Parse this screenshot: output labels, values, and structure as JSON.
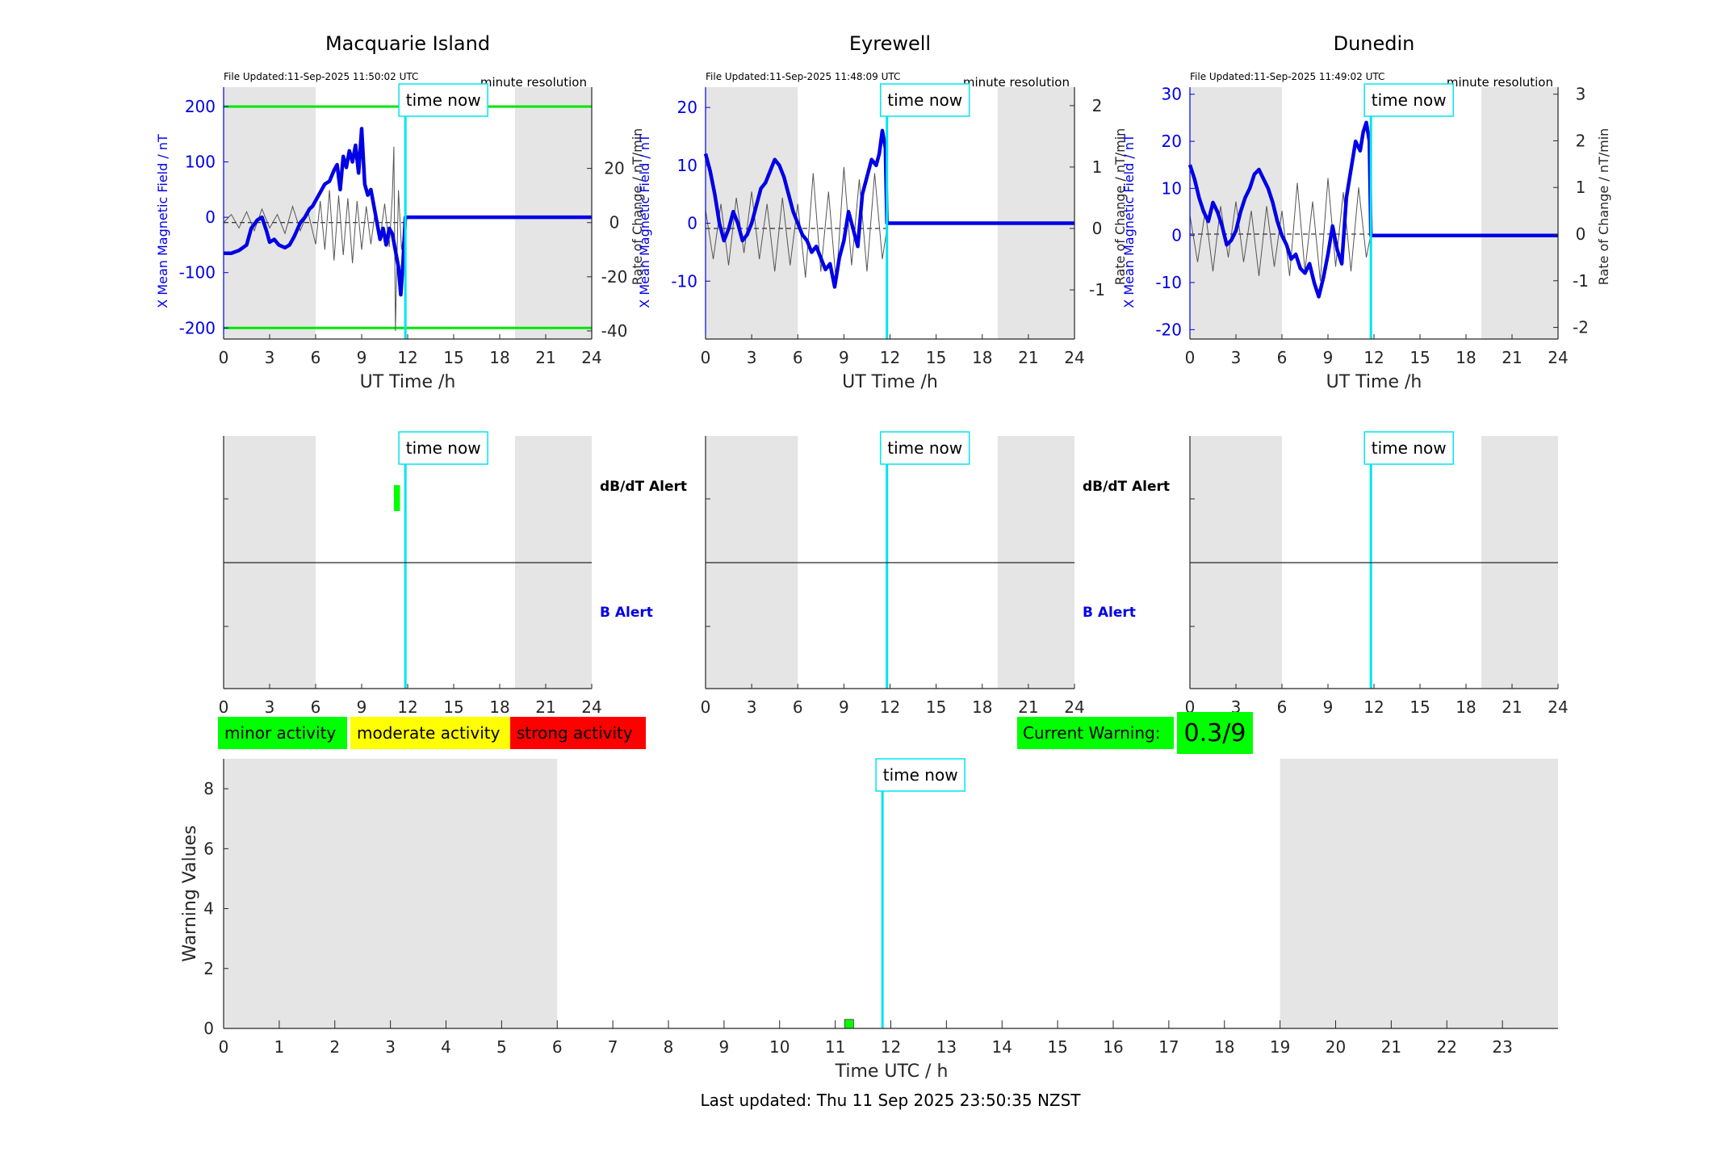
{
  "footer": {
    "last_updated": "Last updated: Thu 11 Sep 2025 23:50:35 NZST"
  },
  "colors": {
    "series_blue": "#0000e6",
    "rate_gray": "#555555",
    "time_now": "#00e5ee",
    "shade": "#e5e5e5",
    "threshold_green": "#00e600",
    "minor": "#00ff00",
    "moderate": "#ffff00",
    "strong": "#ff0000"
  },
  "legend": {
    "minor": "minor activity",
    "moderate": "moderate activity",
    "strong": "strong activity"
  },
  "current_warning": {
    "label": "Current Warning:",
    "value": "0.3/9"
  },
  "stations": [
    {
      "name": "Macquarie Island",
      "file_updated": "File Updated:11-Sep-2025 11:50:02 UTC",
      "resolution": "minute resolution",
      "time_now_label": "time now",
      "dbdt_alert_label": "dB/dT Alert",
      "b_alert_label": "B Alert",
      "alert_panel_labels": true
    },
    {
      "name": "Eyrewell",
      "file_updated": "File Updated:11-Sep-2025 11:48:09 UTC",
      "resolution": "minute resolution",
      "time_now_label": "time now",
      "dbdt_alert_label": "dB/dT Alert",
      "b_alert_label": "B Alert",
      "alert_panel_labels": true
    },
    {
      "name": "Dunedin",
      "file_updated": "File Updated:11-Sep-2025 11:49:02 UTC",
      "resolution": "minute resolution",
      "time_now_label": "time now",
      "dbdt_alert_label": "",
      "b_alert_label": "",
      "alert_panel_labels": false
    }
  ],
  "chart_data": [
    {
      "type": "line",
      "title": "Macquarie Island",
      "xlabel": "UT Time /h",
      "ylabel": "X Mean Magnetic Field / nT",
      "ylabel_right": "Rate of Change / nT/min",
      "xlim": [
        0,
        24
      ],
      "xticks": [
        0,
        3,
        6,
        9,
        12,
        15,
        18,
        21,
        24
      ],
      "ylim": [
        -220,
        235
      ],
      "yticks": [
        -200,
        -100,
        0,
        100,
        200
      ],
      "ylim_right": [
        -43,
        50
      ],
      "yticks_right": [
        -40,
        -20,
        0,
        20
      ],
      "shaded_x": [
        [
          0,
          6
        ],
        [
          19,
          24
        ]
      ],
      "time_now": 11.85,
      "thresholds": [
        200,
        -200
      ],
      "series": [
        {
          "role": "x_field",
          "x": [
            0,
            0.5,
            1,
            1.5,
            1.8,
            2.2,
            2.5,
            2.8,
            3,
            3.3,
            3.6,
            4,
            4.3,
            4.6,
            5,
            5.3,
            5.6,
            5.8,
            6,
            6.3,
            6.6,
            6.9,
            7.2,
            7.4,
            7.6,
            7.8,
            8,
            8.2,
            8.4,
            8.6,
            8.8,
            9,
            9.2,
            9.4,
            9.6,
            9.8,
            10,
            10.2,
            10.4,
            10.6,
            10.8,
            11,
            11.2,
            11.4,
            11.55,
            11.7,
            11.85,
            24
          ],
          "y": [
            -65,
            -65,
            -60,
            -50,
            -20,
            -5,
            0,
            -25,
            -45,
            -40,
            -50,
            -55,
            -50,
            -35,
            -10,
            0,
            15,
            20,
            30,
            45,
            60,
            65,
            85,
            95,
            50,
            110,
            90,
            120,
            100,
            130,
            80,
            160,
            60,
            40,
            50,
            20,
            -10,
            -40,
            -20,
            -50,
            -20,
            -30,
            -60,
            -90,
            -140,
            -80,
            0,
            0
          ]
        },
        {
          "role": "rate",
          "x": [
            0,
            0.5,
            1,
            1.5,
            2,
            2.5,
            3,
            3.5,
            4,
            4.5,
            5,
            5.5,
            6,
            6.3,
            6.6,
            6.9,
            7.2,
            7.5,
            7.8,
            8.1,
            8.4,
            8.7,
            9,
            9.3,
            9.6,
            9.9,
            10.2,
            10.5,
            10.8,
            11,
            11.1,
            11.2,
            11.4,
            11.6,
            11.85
          ],
          "y": [
            0,
            3,
            -2,
            4,
            -3,
            5,
            -2,
            3,
            -4,
            6,
            -3,
            4,
            -8,
            8,
            -10,
            12,
            -14,
            10,
            -12,
            9,
            -15,
            8,
            -10,
            6,
            -8,
            5,
            -6,
            7,
            -9,
            10,
            28,
            -40,
            12,
            -10,
            0
          ]
        }
      ]
    },
    {
      "type": "line",
      "title": "Eyrewell",
      "xlabel": "UT Time /h",
      "ylabel": "X Mean Magnetic Field / nT",
      "ylabel_right": "Rate of Change / nT/min",
      "xlim": [
        0,
        24
      ],
      "xticks": [
        0,
        3,
        6,
        9,
        12,
        15,
        18,
        21,
        24
      ],
      "ylim": [
        -20,
        23.5
      ],
      "yticks": [
        -10,
        0,
        10,
        20
      ],
      "ylim_right": [
        -1.8,
        2.3
      ],
      "yticks_right": [
        -1,
        0,
        1,
        2
      ],
      "shaded_x": [
        [
          0,
          6
        ],
        [
          19,
          24
        ]
      ],
      "time_now": 11.8,
      "thresholds": [],
      "series": [
        {
          "role": "x_field",
          "x": [
            0,
            0.3,
            0.6,
            0.9,
            1.2,
            1.5,
            1.8,
            2.1,
            2.4,
            2.7,
            3,
            3.3,
            3.6,
            3.9,
            4.2,
            4.5,
            4.8,
            5.1,
            5.4,
            5.7,
            6,
            6.3,
            6.6,
            6.9,
            7.2,
            7.5,
            7.8,
            8.1,
            8.4,
            8.7,
            9,
            9.3,
            9.6,
            9.9,
            10.2,
            10.5,
            10.8,
            11.1,
            11.3,
            11.5,
            11.7,
            11.8,
            24
          ],
          "y": [
            12,
            9,
            5,
            0,
            -3,
            -1,
            2,
            0,
            -3,
            -2,
            0,
            3,
            6,
            7,
            9,
            11,
            10,
            8,
            5,
            2,
            0,
            -2,
            -3,
            -5,
            -4,
            -6,
            -8,
            -7,
            -11,
            -6,
            -3,
            2,
            -1,
            -4,
            5,
            8,
            11,
            10,
            12,
            16,
            13,
            0,
            0
          ]
        },
        {
          "role": "rate",
          "x": [
            0,
            0.5,
            1,
            1.5,
            2,
            2.5,
            3,
            3.5,
            4,
            4.5,
            5,
            5.5,
            6,
            6.5,
            7,
            7.5,
            8,
            8.5,
            9,
            9.5,
            10,
            10.5,
            11,
            11.5,
            11.8
          ],
          "y": [
            0.3,
            -0.5,
            0.4,
            -0.6,
            0.5,
            -0.4,
            0.6,
            -0.5,
            0.4,
            -0.7,
            0.5,
            -0.6,
            0.4,
            -0.8,
            0.9,
            -0.7,
            0.6,
            -0.9,
            1.0,
            -0.6,
            0.8,
            -0.7,
            0.9,
            -0.5,
            0
          ]
        }
      ]
    },
    {
      "type": "line",
      "title": "Dunedin",
      "xlabel": "UT Time /h",
      "ylabel": "X Mean Magnetic Field / nT",
      "ylabel_right": "Rate of Change / nT/min",
      "xlim": [
        0,
        24
      ],
      "xticks": [
        0,
        3,
        6,
        9,
        12,
        15,
        18,
        21,
        24
      ],
      "ylim": [
        -22,
        31.5
      ],
      "yticks": [
        -20,
        -10,
        0,
        10,
        20,
        30
      ],
      "ylim_right": [
        -2.25,
        3.15
      ],
      "yticks_right": [
        -2,
        -1,
        0,
        1,
        2,
        3
      ],
      "shaded_x": [
        [
          0,
          6
        ],
        [
          19,
          24
        ]
      ],
      "time_now": 11.8,
      "thresholds": [],
      "series": [
        {
          "role": "x_field",
          "x": [
            0,
            0.3,
            0.6,
            0.9,
            1.2,
            1.5,
            1.8,
            2.1,
            2.4,
            2.7,
            3,
            3.3,
            3.6,
            3.9,
            4.2,
            4.5,
            4.8,
            5.1,
            5.4,
            5.7,
            6,
            6.3,
            6.6,
            6.9,
            7.2,
            7.5,
            7.8,
            8.1,
            8.4,
            8.7,
            9,
            9.3,
            9.6,
            9.9,
            10.2,
            10.5,
            10.8,
            11.1,
            11.3,
            11.5,
            11.7,
            11.8,
            24
          ],
          "y": [
            15,
            12,
            8,
            5,
            3,
            7,
            5,
            2,
            -2,
            -1,
            1,
            5,
            8,
            10,
            13,
            14,
            12,
            10,
            7,
            3,
            0,
            -2,
            -5,
            -4,
            -7,
            -8,
            -6,
            -10,
            -13,
            -9,
            -4,
            2,
            -3,
            -6,
            8,
            14,
            20,
            18,
            22,
            24,
            20,
            0,
            0
          ]
        },
        {
          "role": "rate",
          "x": [
            0,
            0.5,
            1,
            1.5,
            2,
            2.5,
            3,
            3.5,
            4,
            4.5,
            5,
            5.5,
            6,
            6.5,
            7,
            7.5,
            8,
            8.5,
            9,
            9.5,
            10,
            10.5,
            11,
            11.5,
            11.8
          ],
          "y": [
            0.4,
            -0.6,
            0.5,
            -0.8,
            0.6,
            -0.5,
            0.7,
            -0.6,
            0.5,
            -0.9,
            0.6,
            -0.7,
            0.5,
            -0.9,
            1.1,
            -0.8,
            0.7,
            -1.0,
            1.2,
            -0.7,
            0.9,
            -0.8,
            1.0,
            -0.5,
            0
          ]
        }
      ]
    },
    {
      "type": "bar",
      "title": "",
      "xlabel": "Time UTC / h",
      "ylabel": "",
      "xlim": [
        0,
        24
      ],
      "xticks": [
        0,
        3,
        6,
        9,
        12,
        15,
        18,
        21,
        24
      ],
      "ylim": [
        0,
        2
      ],
      "shaded_x": [
        [
          0,
          6
        ],
        [
          19,
          24
        ]
      ],
      "time_now": 11.85,
      "series": [
        {
          "name": "dB/dT Alert",
          "bars": [
            {
              "x0": 11.1,
              "x1": 11.5,
              "level": "minor"
            }
          ]
        },
        {
          "name": "B Alert",
          "bars": []
        }
      ]
    },
    {
      "type": "bar",
      "title": "",
      "xlabel": "",
      "ylabel": "",
      "xlim": [
        0,
        24
      ],
      "xticks": [
        0,
        3,
        6,
        9,
        12,
        15,
        18,
        21,
        24
      ],
      "ylim": [
        0,
        2
      ],
      "shaded_x": [
        [
          0,
          6
        ],
        [
          19,
          24
        ]
      ],
      "time_now": 11.8,
      "series": [
        {
          "name": "dB/dT Alert",
          "bars": []
        },
        {
          "name": "B Alert",
          "bars": []
        }
      ]
    },
    {
      "type": "bar",
      "title": "",
      "xlabel": "",
      "ylabel": "",
      "xlim": [
        0,
        24
      ],
      "xticks": [
        0,
        3,
        6,
        9,
        12,
        15,
        18,
        21,
        24
      ],
      "ylim": [
        0,
        2
      ],
      "shaded_x": [
        [
          0,
          6
        ],
        [
          19,
          24
        ]
      ],
      "time_now": 11.8,
      "series": [
        {
          "name": "dB/dT Alert",
          "bars": []
        },
        {
          "name": "B Alert",
          "bars": []
        }
      ]
    },
    {
      "type": "bar",
      "title": "",
      "xlabel": "Time UTC / h",
      "ylabel": "Warning Values",
      "xlim": [
        0,
        24
      ],
      "xticks": [
        0,
        1,
        2,
        3,
        4,
        5,
        6,
        7,
        8,
        9,
        10,
        11,
        12,
        13,
        14,
        15,
        16,
        17,
        18,
        19,
        20,
        21,
        22,
        23
      ],
      "ylim": [
        0,
        9
      ],
      "yticks": [
        0,
        2,
        4,
        6,
        8
      ],
      "shaded_x": [
        [
          0,
          6
        ],
        [
          19,
          24
        ]
      ],
      "time_now": 11.85,
      "time_now_label": "time now",
      "bars": [
        {
          "x0": 11.17,
          "x1": 11.33,
          "value": 0.3,
          "level": "minor"
        }
      ]
    }
  ]
}
